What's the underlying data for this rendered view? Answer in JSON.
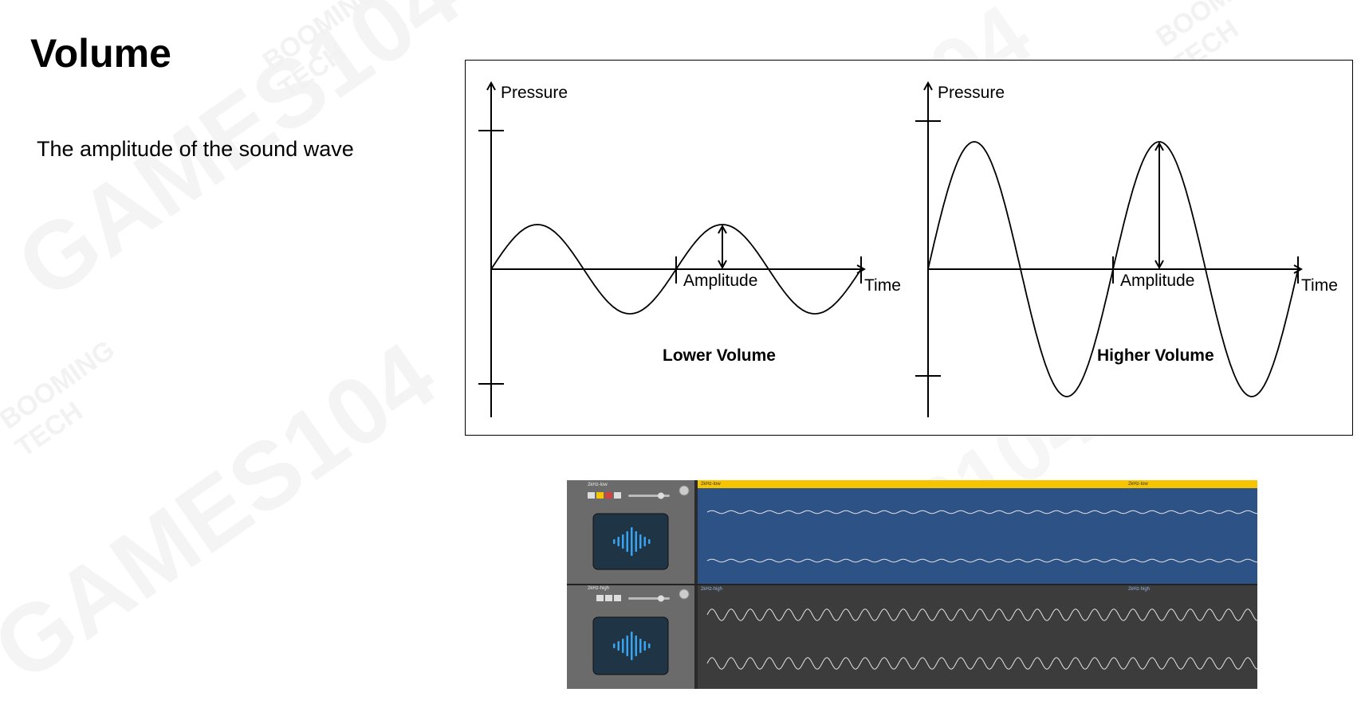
{
  "slide": {
    "title": "Volume",
    "body": "The amplitude of the sound wave"
  },
  "diagram": {
    "panels": [
      {
        "y_label": "Pressure",
        "x_label": "Time",
        "annotation": "Amplitude",
        "caption": "Lower Volume",
        "amplitude": 0.35
      },
      {
        "y_label": "Pressure",
        "x_label": "Time",
        "annotation": "Amplitude",
        "caption": "Higher Volume",
        "amplitude": 1.0
      }
    ]
  },
  "daw": {
    "tracks": [
      {
        "name": "2kHz-low",
        "region_label": "2kHz-low",
        "buttons": [
          "M",
          "S",
          "R",
          "I"
        ],
        "region_color": "#2d5286",
        "wave_amplitude": 0.2
      },
      {
        "name": "2kHz-high",
        "region_label": "2kHz-high",
        "buttons": [
          "S",
          "R",
          "I"
        ],
        "region_color": "#3c3c3c",
        "wave_amplitude": 0.8
      }
    ],
    "colors": {
      "header_bar": "#f6c500",
      "header_panel": "#6b6b6b",
      "icon_blue": "#3aa3f0"
    }
  },
  "watermark": {
    "logo_text": "GAMES104",
    "brand_lines": [
      "BOOMING",
      "TECH"
    ]
  }
}
